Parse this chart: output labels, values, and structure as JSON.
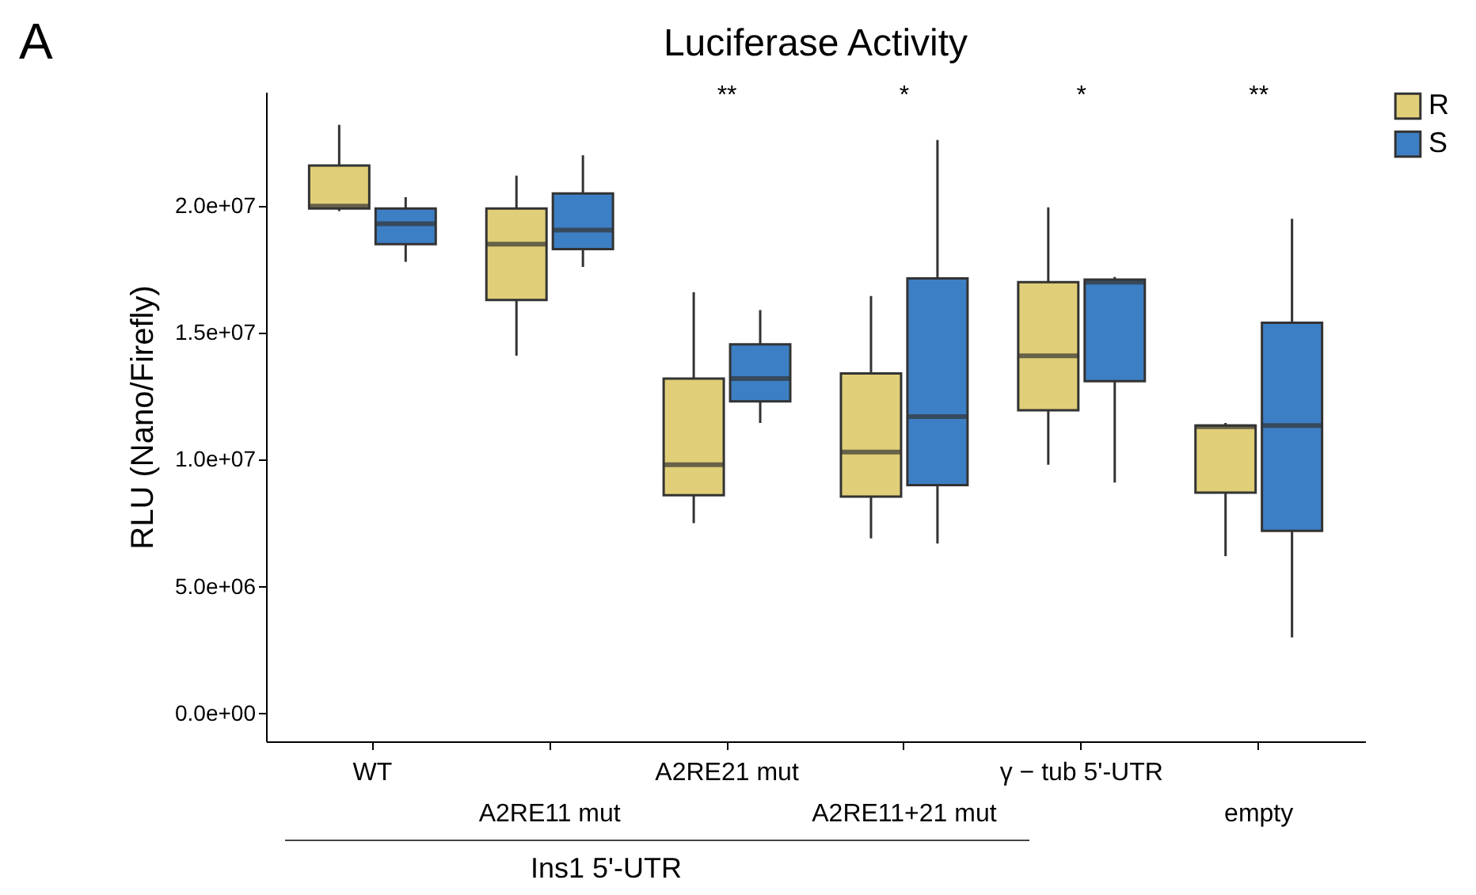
{
  "chart_data": {
    "type": "box",
    "title": "Luciferase Activity",
    "ylabel": "RLU (Nano/Firefly)",
    "categories": [
      "WT",
      "A2RE11 mut",
      "A2RE21 mut",
      "A2RE11+21 mut",
      "γ − tub 5'-UTR",
      "empty"
    ],
    "ylim": [
      -1100000,
      24500000
    ],
    "yticks": [
      {
        "value": 0,
        "label": "0.0e+00"
      },
      {
        "value": 5000000,
        "label": "5.0e+06"
      },
      {
        "value": 10000000,
        "label": "1.0e+07"
      },
      {
        "value": 15000000,
        "label": "1.5e+07"
      },
      {
        "value": 20000000,
        "label": "2.0e+07"
      }
    ],
    "grid": false,
    "legend": "right",
    "series": [
      {
        "name": "R",
        "color": "#e0cf78",
        "boxes": [
          {
            "low": 19800000,
            "q1": 19900000,
            "median": 20000000,
            "q3": 21600000,
            "high": 23200000
          },
          {
            "low": 14100000,
            "q1": 16300000,
            "median": 18500000,
            "q3": 19900000,
            "high": 21200000
          },
          {
            "low": 7500000,
            "q1": 8600000,
            "median": 9800000,
            "q3": 13200000,
            "high": 16600000
          },
          {
            "low": 6900000,
            "q1": 8550000,
            "median": 10300000,
            "q3": 13400000,
            "high": 16450000
          },
          {
            "low": 9800000,
            "q1": 11950000,
            "median": 14100000,
            "q3": 17000000,
            "high": 19950000
          },
          {
            "low": 6200000,
            "q1": 8700000,
            "median": 11300000,
            "q3": 11350000,
            "high": 11450000
          }
        ]
      },
      {
        "name": "S",
        "color": "#3d7fc4",
        "boxes": [
          {
            "low": 17800000,
            "q1": 18500000,
            "median": 19300000,
            "q3": 19900000,
            "high": 20350000
          },
          {
            "low": 17600000,
            "q1": 18300000,
            "median": 19050000,
            "q3": 20500000,
            "high": 22000000
          },
          {
            "low": 11450000,
            "q1": 12300000,
            "median": 13200000,
            "q3": 14550000,
            "high": 15900000
          },
          {
            "low": 6700000,
            "q1": 9000000,
            "median": 11700000,
            "q3": 17150000,
            "high": 22600000
          },
          {
            "low": 9100000,
            "q1": 13100000,
            "median": 17000000,
            "q3": 17100000,
            "high": 17200000
          },
          {
            "low": 3000000,
            "q1": 7200000,
            "median": 11350000,
            "q3": 15400000,
            "high": 19500000
          }
        ]
      }
    ],
    "annotations": [
      "A",
      "**",
      "*",
      "*",
      "**",
      "Ins1 5'-UTR"
    ]
  }
}
